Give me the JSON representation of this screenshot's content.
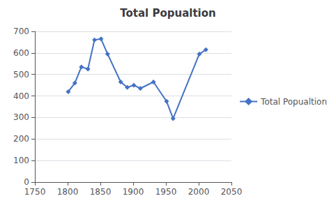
{
  "chart_data": {
    "type": "line",
    "title": "Total Popualtion",
    "x": [
      1801,
      1811,
      1821,
      1831,
      1841,
      1851,
      1861,
      1881,
      1891,
      1901,
      1911,
      1931,
      1951,
      1961,
      2001,
      2011
    ],
    "series": [
      {
        "name": "Total Popualtion",
        "color": "#4472C4",
        "marker": "diamond",
        "values": [
          420,
          460,
          535,
          525,
          660,
          665,
          595,
          465,
          440,
          450,
          435,
          465,
          375,
          295,
          595,
          615
        ]
      }
    ],
    "xlim": [
      1750,
      2050
    ],
    "xticks": [
      1750,
      1800,
      1850,
      1900,
      1950,
      2000,
      2050
    ],
    "ylim": [
      0,
      700
    ],
    "yticks": [
      0,
      100,
      200,
      300,
      400,
      500,
      600,
      700
    ],
    "grid": true,
    "legend": "right"
  }
}
